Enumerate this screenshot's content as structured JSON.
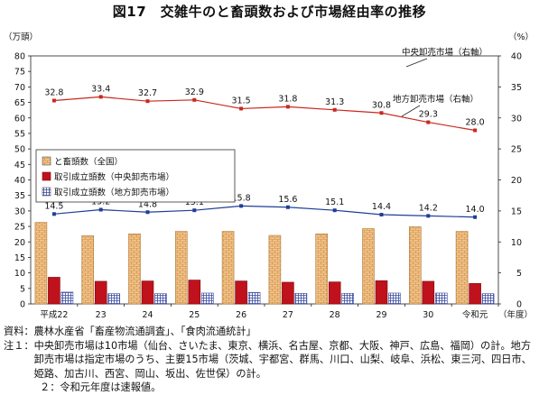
{
  "figure_title": "図17　交雑牛のと畜頭数および市場経由率の推移",
  "chart_data": {
    "type": "bar+line",
    "title": "図17　交雑牛のと畜頭数および市場経由率の推移",
    "categories": [
      "平成22",
      "23",
      "24",
      "25",
      "26",
      "27",
      "28",
      "29",
      "30",
      "令和元"
    ],
    "x_unit_label": "（年度）",
    "left_axis": {
      "unit_label": "（万頭）",
      "min": 0,
      "max": 80,
      "step": 5
    },
    "right_axis": {
      "unit_label": "（%）",
      "min": 0,
      "max": 40,
      "step": 5,
      "visible_tick_range": [
        0,
        40
      ]
    },
    "bar_series": [
      {
        "name": "と畜頭数（全国）",
        "color": "#f0b878",
        "pattern": "brick",
        "axis": "left",
        "values": [
          26.3,
          22.0,
          22.6,
          23.4,
          23.4,
          22.1,
          22.6,
          24.3,
          24.9,
          23.4
        ]
      },
      {
        "name": "取引成立頭数（中央卸売市場）",
        "color": "#c0121c",
        "pattern": "solid",
        "axis": "left",
        "values": [
          8.6,
          7.3,
          7.4,
          7.7,
          7.4,
          7.0,
          7.1,
          7.5,
          7.3,
          6.6
        ]
      },
      {
        "name": "取引成立頭数（地方卸売市場）",
        "color": "#3a4aa0",
        "pattern": "grid",
        "axis": "left",
        "values": [
          3.8,
          3.3,
          3.3,
          3.5,
          3.7,
          3.4,
          3.4,
          3.5,
          3.5,
          3.3
        ]
      }
    ],
    "line_series": [
      {
        "name": "中央卸売市場（右軸）",
        "color": "#c8281e",
        "axis": "right",
        "values": [
          32.8,
          33.4,
          32.7,
          32.9,
          31.5,
          31.8,
          31.3,
          30.8,
          29.3,
          28.0
        ],
        "labels": [
          "32.8",
          "33.4",
          "32.7",
          "32.9",
          "31.5",
          "31.8",
          "31.3",
          "30.8",
          "29.3",
          "28.0"
        ]
      },
      {
        "name": "地方卸売市場（右軸）",
        "color": "#1f3f96",
        "axis": "right",
        "values": [
          14.5,
          15.2,
          14.8,
          15.1,
          15.8,
          15.6,
          15.1,
          14.4,
          14.2,
          14.0
        ],
        "labels": [
          "14.5",
          "15.2",
          "14.8",
          "15.1",
          "15.8",
          "15.6",
          "15.1",
          "14.4",
          "14.2",
          "14.0"
        ]
      }
    ],
    "legend_placement": "left-middle",
    "grid": false
  },
  "notes": {
    "source_label": "資料：",
    "source_text": "農林水産省「畜産物流通調査」、「食肉流通統計」",
    "note1_label": "注１：",
    "note1_text": "中央卸売市場は10市場（仙台、さいたま、東京、横浜、名古屋、京都、大阪、神戸、広島、福岡）の計。地方卸売市場は指定市場のうち、主要15市場（茨城、宇都宮、群馬、川口、山梨、岐阜、浜松、東三河、四日市、姫路、加古川、西宮、岡山、坂出、佐世保）の計。",
    "note2_label": "２：",
    "note2_text": "令和元年度は速報値。"
  }
}
